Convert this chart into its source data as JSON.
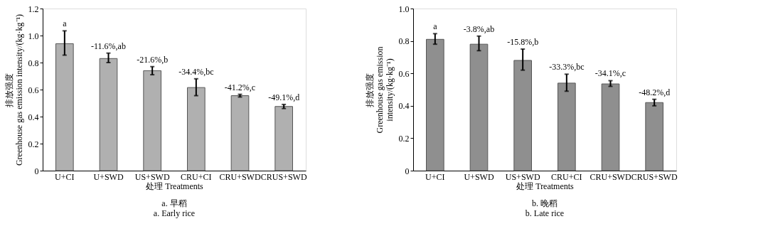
{
  "chart_data": [
    {
      "type": "bar",
      "title": "a.  早稻\na. Early rice",
      "xlabel": "处理 Treatments",
      "ylabel": "排放强度\nGreenhouse gas emission intensity/(kg·kg⁻¹)",
      "categories": [
        "U+CI",
        "U+SWD",
        "US+SWD",
        "CRU+CI",
        "CRU+SWD",
        "CRUS+SWD"
      ],
      "series": [
        {
          "color": "#b0b0b0",
          "values": [
            0.94,
            0.83,
            0.74,
            0.615,
            0.555,
            0.475
          ],
          "errors": [
            [
              0.855,
              1.035
            ],
            [
              0.8,
              0.87
            ],
            [
              0.71,
              0.77
            ],
            [
              0.555,
              0.68
            ],
            [
              0.545,
              0.565
            ],
            [
              0.46,
              0.49
            ]
          ]
        }
      ],
      "annotations": [
        {
          "text": "a",
          "x": "U+CI",
          "y": 1.035
        },
        {
          "text": "-11.6%,ab",
          "x": "U+SWD",
          "y": 0.87
        },
        {
          "text": "-21.6%,b",
          "x": "US+SWD",
          "y": 0.77
        },
        {
          "text": "-34.4%,bc",
          "x": "CRU+CI",
          "y": 0.68
        },
        {
          "text": "-41.2%,c",
          "x": "CRU+SWD",
          "y": 0.565
        },
        {
          "text": "-49.1%,d",
          "x": "CRUS+SWD",
          "y": 0.49
        }
      ],
      "ylim": [
        0,
        1.2
      ],
      "yticks": [
        0,
        {
          "value": 0.2,
          "label": "0.2"
        },
        {
          "value": 0.4,
          "label": "0.4"
        },
        {
          "value": 0.6,
          "label": "0.6"
        },
        {
          "value": 0.8,
          "label": "0.8"
        },
        {
          "value": 1.0,
          "label": "1.0"
        },
        {
          "value": 1.2,
          "label": "1.2"
        }
      ],
      "grid": false
    },
    {
      "type": "bar",
      "title": "b.  晚稻\nb. Late rice",
      "xlabel": "处理 Treatments",
      "ylabel": "排放强度\nGreenhouse gas emission\nintensity/(kg·kg⁻¹)",
      "categories": [
        "U+CI",
        "U+SWD",
        "US+SWD",
        "CRU+CI",
        "CRU+SWD",
        "CRUS+SWD"
      ],
      "series": [
        {
          "color": "#8f8f8f",
          "values": [
            0.81,
            0.78,
            0.68,
            0.54,
            0.535,
            0.42
          ],
          "errors": [
            [
              0.78,
              0.845
            ],
            [
              0.74,
              0.83
            ],
            [
              0.62,
              0.75
            ],
            [
              0.49,
              0.595
            ],
            [
              0.52,
              0.555
            ],
            [
              0.4,
              0.44
            ]
          ]
        }
      ],
      "annotations": [
        {
          "text": "a",
          "x": "U+CI",
          "y": 0.845
        },
        {
          "text": "-3.8%,ab",
          "x": "U+SWD",
          "y": 0.83
        },
        {
          "text": "-15.8%,b",
          "x": "US+SWD",
          "y": 0.75
        },
        {
          "text": "-33.3%,bc",
          "x": "CRU+CI",
          "y": 0.595
        },
        {
          "text": "-34.1%,c",
          "x": "CRU+SWD",
          "y": 0.555
        },
        {
          "text": "-48.2%,d",
          "x": "CRUS+SWD",
          "y": 0.44
        }
      ],
      "ylim": [
        0,
        1.0
      ],
      "yticks": [
        0,
        {
          "value": 0.2,
          "label": "0.2"
        },
        {
          "value": 0.4,
          "label": "0.4"
        },
        {
          "value": 0.6,
          "label": "0.6"
        },
        {
          "value": 0.8,
          "label": "0.8"
        },
        {
          "value": 1.0,
          "label": "1.0"
        }
      ],
      "grid": false
    }
  ]
}
